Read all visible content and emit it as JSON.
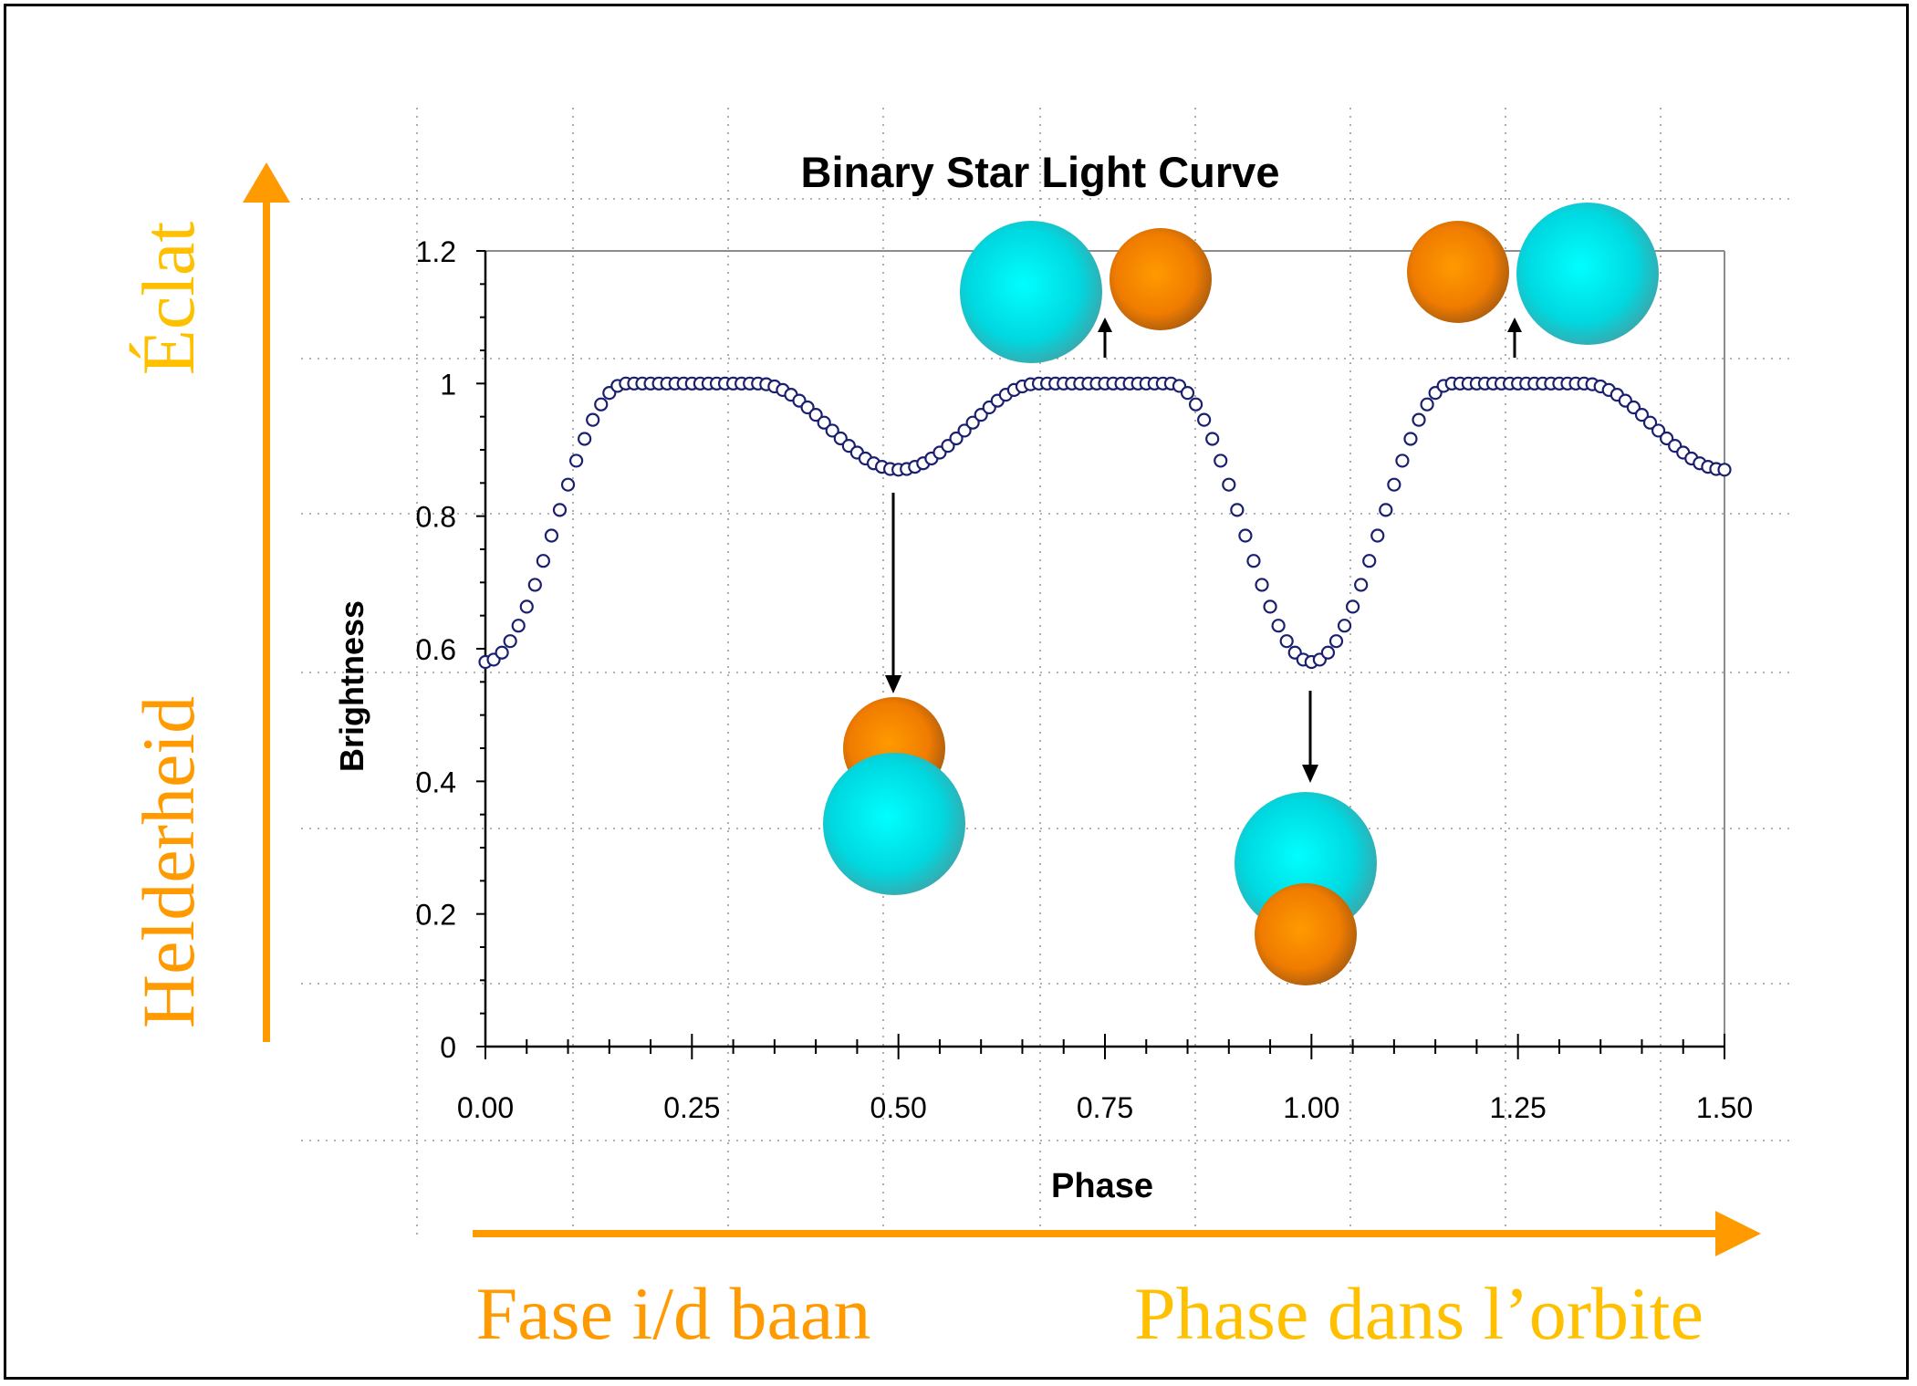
{
  "chart_data": {
    "type": "scatter",
    "title": "Binary Star Light Curve",
    "xlabel": "Phase",
    "ylabel": "Brightness",
    "xlim": [
      0,
      1.5
    ],
    "ylim": [
      0,
      1.2
    ],
    "x_ticks": [
      "0.00",
      "0.25",
      "0.50",
      "0.75",
      "1.00",
      "1.25",
      "1.50"
    ],
    "y_ticks": [
      "0",
      "0.2",
      "0.4",
      "0.6",
      "0.8",
      "1",
      "1.2"
    ],
    "grid": true,
    "marker": "open-circle",
    "marker_color": "#1a1f6e",
    "key_points": [
      {
        "x": 0.0,
        "y": 0.58
      },
      {
        "x": 0.17,
        "y": 1.0
      },
      {
        "x": 0.33,
        "y": 1.0
      },
      {
        "x": 0.5,
        "y": 0.87
      },
      {
        "x": 0.67,
        "y": 1.0
      },
      {
        "x": 0.83,
        "y": 1.0
      },
      {
        "x": 1.0,
        "y": 0.58
      },
      {
        "x": 1.17,
        "y": 1.0
      },
      {
        "x": 1.33,
        "y": 1.0
      },
      {
        "x": 1.5,
        "y": 0.87
      }
    ],
    "annotations": [
      {
        "phase": 0.5,
        "direction": "down",
        "config": "small-behind-large"
      },
      {
        "phase": 0.75,
        "direction": "up",
        "config": "large-left-small-right"
      },
      {
        "phase": 1.0,
        "direction": "down",
        "config": "small-in-front-of-large"
      },
      {
        "phase": 1.25,
        "direction": "up",
        "config": "small-left-large-right"
      }
    ]
  },
  "labels": {
    "vertical_top": "Éclat",
    "vertical_bottom": "Helderheid",
    "horizontal_left": "Fase i/d baan",
    "horizontal_right": "Phase dans l’orbite"
  },
  "colors": {
    "arrow_orange": "#ff9a00",
    "label_orange": "#ff9a00",
    "label_yellow": "#ffc000",
    "large_star": "#00e0e8",
    "small_star": "#ff8a00",
    "grid": "#888888",
    "axis": "#000000"
  }
}
